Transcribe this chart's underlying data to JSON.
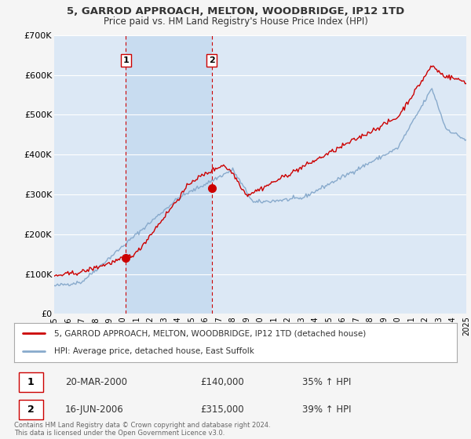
{
  "title": "5, GARROD APPROACH, MELTON, WOODBRIDGE, IP12 1TD",
  "subtitle": "Price paid vs. HM Land Registry's House Price Index (HPI)",
  "legend_label_red": "5, GARROD APPROACH, MELTON, WOODBRIDGE, IP12 1TD (detached house)",
  "legend_label_blue": "HPI: Average price, detached house, East Suffolk",
  "transaction1_date": "20-MAR-2000",
  "transaction1_price": "£140,000",
  "transaction1_hpi": "35% ↑ HPI",
  "transaction2_date": "16-JUN-2006",
  "transaction2_price": "£315,000",
  "transaction2_hpi": "39% ↑ HPI",
  "footer": "Contains HM Land Registry data © Crown copyright and database right 2024.\nThis data is licensed under the Open Government Licence v3.0.",
  "ylim": [
    0,
    700000
  ],
  "yticks": [
    0,
    100000,
    200000,
    300000,
    400000,
    500000,
    600000,
    700000
  ],
  "ytick_labels": [
    "£0",
    "£100K",
    "£200K",
    "£300K",
    "£400K",
    "£500K",
    "£600K",
    "£700K"
  ],
  "bg_color": "#f5f5f5",
  "plot_bg_color": "#dce8f5",
  "highlight_bg_color": "#c8dcf0",
  "red_color": "#cc0000",
  "blue_color": "#88aacc",
  "vline_color": "#cc0000",
  "grid_color": "#ffffff",
  "marker1_year": 2000.22,
  "marker1_value": 140000,
  "marker2_year": 2006.46,
  "marker2_value": 315000,
  "xmin": 1995,
  "xmax": 2025
}
